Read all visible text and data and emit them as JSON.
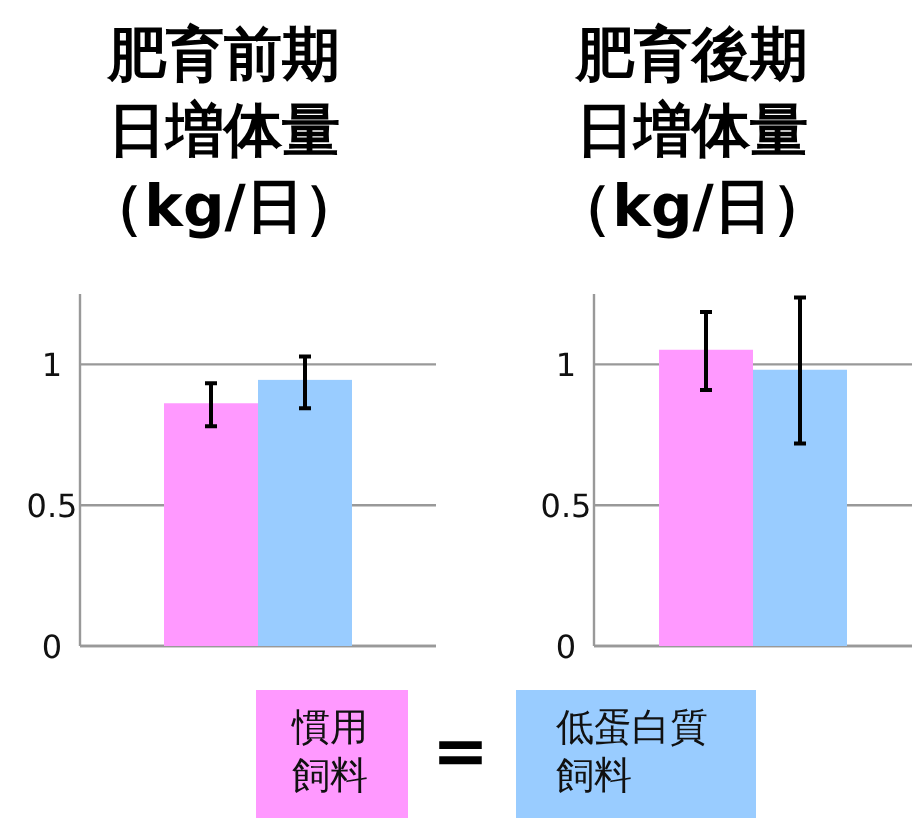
{
  "chart_data": [
    {
      "type": "bar",
      "title": "肥育前期日増体量",
      "subtitle": "（kg/日）",
      "categories": [
        null
      ],
      "series": [
        {
          "name": "慣用飼料",
          "color": "#ff99ff",
          "values": [
            0.862
          ],
          "errors": [
            [
              0.78,
              0.933
            ]
          ]
        },
        {
          "name": "低蛋白質飼料",
          "color": "#99ccff",
          "values": [
            0.945
          ],
          "errors": [
            [
              0.844,
              1.028
            ]
          ]
        }
      ],
      "ylim": [
        0,
        1.25
      ],
      "yticks": [
        0,
        0.5,
        1
      ],
      "grid": "y",
      "legend": "bottom",
      "annotations": [
        "="
      ]
    },
    {
      "type": "bar",
      "title": "肥育後期日増体量",
      "subtitle": "（kg/日）",
      "categories": [
        null
      ],
      "series": [
        {
          "color": "#ff99ff",
          "values": [
            1.052
          ],
          "errors": [
            [
              0.909,
              1.186
            ]
          ]
        },
        {
          "color": "#99ccff",
          "values": [
            0.981
          ],
          "errors": [
            [
              0.719,
              1.238
            ]
          ]
        }
      ],
      "ylim": [
        0,
        1.25
      ],
      "yticks": [
        0,
        0.5,
        1
      ],
      "grid": "y"
    }
  ]
}
